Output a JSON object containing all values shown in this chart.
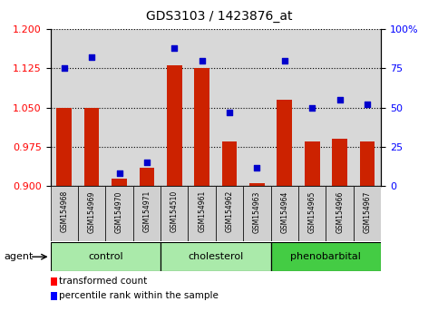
{
  "title": "GDS3103 / 1423876_at",
  "samples": [
    "GSM154968",
    "GSM154969",
    "GSM154970",
    "GSM154971",
    "GSM154510",
    "GSM154961",
    "GSM154962",
    "GSM154963",
    "GSM154964",
    "GSM154965",
    "GSM154966",
    "GSM154967"
  ],
  "red_values": [
    1.05,
    1.05,
    0.915,
    0.935,
    1.13,
    1.125,
    0.985,
    0.905,
    1.065,
    0.985,
    0.99,
    0.985
  ],
  "blue_values": [
    75,
    82,
    8,
    15,
    88,
    80,
    47,
    12,
    80,
    50,
    55,
    52
  ],
  "group_labels": [
    "control",
    "cholesterol",
    "phenobarbital"
  ],
  "group_starts": [
    0,
    4,
    8
  ],
  "group_ends": [
    4,
    8,
    12
  ],
  "group_colors": [
    "#aaeaaa",
    "#aaeaaa",
    "#44cc44"
  ],
  "left_ylim": [
    0.9,
    1.2
  ],
  "right_ylim": [
    0,
    100
  ],
  "left_yticks": [
    0.9,
    0.975,
    1.05,
    1.125,
    1.2
  ],
  "right_yticks": [
    0,
    25,
    50,
    75,
    100
  ],
  "right_yticklabels": [
    "0",
    "25",
    "50",
    "75",
    "100%"
  ],
  "bar_color": "#CC2200",
  "dot_color": "#0000CC",
  "plot_bg": "#d8d8d8",
  "bar_width": 0.55
}
